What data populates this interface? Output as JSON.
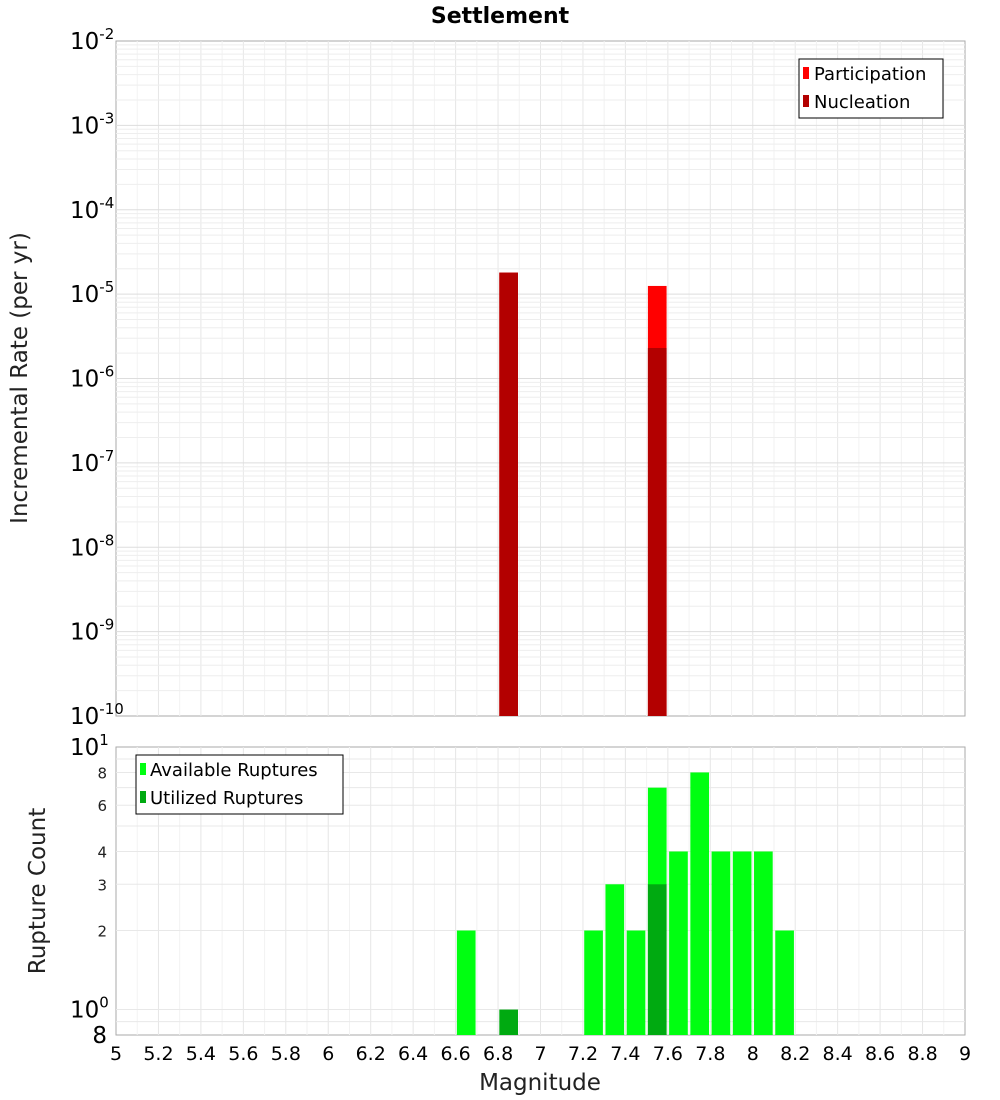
{
  "chart_data": [
    {
      "type": "bar",
      "title": "Settlement",
      "xlabel": "",
      "ylabel": "Incremental Rate (per yr)",
      "yscale": "log",
      "ylim": [
        1e-10,
        0.01
      ],
      "xlim": [
        5,
        9
      ],
      "y_ticks": [
        {
          "base": "10",
          "exp": "-10"
        },
        {
          "base": "10",
          "exp": "-9"
        },
        {
          "base": "10",
          "exp": "-8"
        },
        {
          "base": "10",
          "exp": "-7"
        },
        {
          "base": "10",
          "exp": "-6"
        },
        {
          "base": "10",
          "exp": "-5"
        },
        {
          "base": "10",
          "exp": "-4"
        },
        {
          "base": "10",
          "exp": "-3"
        },
        {
          "base": "10",
          "exp": "-2"
        }
      ],
      "grid": true,
      "legend_position": "top-right",
      "series": [
        {
          "name": "Participation",
          "color": "#ff0000",
          "x": [
            6.85,
            7.55
          ],
          "values": [
            1.8e-05,
            1.25e-05
          ]
        },
        {
          "name": "Nucleation",
          "color": "#b30000",
          "x": [
            6.85,
            7.55
          ],
          "values": [
            1.8e-05,
            2.3e-06
          ]
        }
      ]
    },
    {
      "type": "bar",
      "title": "",
      "xlabel": "Magnitude",
      "ylabel": "Rupture Count",
      "yscale": "log",
      "ylim": [
        0.8,
        10
      ],
      "xlim": [
        5,
        9
      ],
      "x_ticks": [
        "5",
        "5.2",
        "5.4",
        "5.6",
        "5.8",
        "6",
        "6.2",
        "6.4",
        "6.6",
        "6.8",
        "7",
        "7.2",
        "7.4",
        "7.6",
        "7.8",
        "8",
        "8.2",
        "8.4",
        "8.6",
        "8.8",
        "9"
      ],
      "y_tick_labels": [
        {
          "value": 8,
          "label": "8"
        },
        {
          "value": 6,
          "label": "6"
        },
        {
          "value": 4,
          "label": "4"
        },
        {
          "value": 3,
          "label": "3"
        },
        {
          "value": 2,
          "label": "2"
        }
      ],
      "y_decade_labels": [
        {
          "value": 1,
          "base": "10",
          "exp": "0"
        },
        {
          "value": 10,
          "base": "10",
          "exp": "1"
        }
      ],
      "y_bottom_label": "8",
      "grid": true,
      "legend_position": "top-left",
      "series": [
        {
          "name": "Available Ruptures",
          "color": "#00ff11",
          "x": [
            6.65,
            7.25,
            7.35,
            7.45,
            7.55,
            7.65,
            7.75,
            7.85,
            7.95,
            8.05,
            8.15
          ],
          "values": [
            2,
            2,
            3,
            2,
            7,
            4,
            8,
            4,
            4,
            4,
            2
          ]
        },
        {
          "name": "Utilized Ruptures",
          "color": "#00aa11",
          "x": [
            6.85,
            7.55
          ],
          "values": [
            1,
            3
          ]
        }
      ]
    }
  ]
}
